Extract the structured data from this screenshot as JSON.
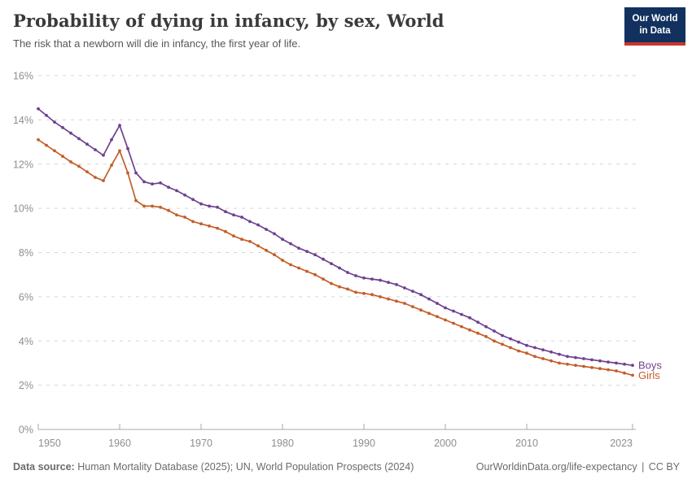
{
  "header": {
    "title": "Probability of dying in infancy, by sex, World",
    "subtitle": "The risk that a newborn will die in infancy, the first year of life.",
    "logo_line1": "Our World",
    "logo_line2": "in Data",
    "logo_bg": "#12315F",
    "logo_accent": "#C7372C"
  },
  "chart_data": {
    "type": "line",
    "title": "Probability of dying in infancy, by sex, World",
    "xlabel": "",
    "ylabel": "",
    "grid": "horizontal dashed",
    "legend_position": "end-of-line labels",
    "ylim": [
      0,
      16
    ],
    "yticks": [
      0,
      2,
      4,
      6,
      8,
      10,
      12,
      14,
      16
    ],
    "ytick_suffix": "%",
    "xticks": [
      1950,
      1960,
      1970,
      1980,
      1990,
      2000,
      2010,
      2023
    ],
    "colors": {
      "grid": "#d6d6d6",
      "axis": "#a9a9a9",
      "tick_text": "#8e8e8e"
    },
    "x": [
      1950,
      1951,
      1952,
      1953,
      1954,
      1955,
      1956,
      1957,
      1958,
      1959,
      1960,
      1961,
      1962,
      1963,
      1964,
      1965,
      1966,
      1967,
      1968,
      1969,
      1970,
      1971,
      1972,
      1973,
      1974,
      1975,
      1976,
      1977,
      1978,
      1979,
      1980,
      1981,
      1982,
      1983,
      1984,
      1985,
      1986,
      1987,
      1988,
      1989,
      1990,
      1991,
      1992,
      1993,
      1994,
      1995,
      1996,
      1997,
      1998,
      1999,
      2000,
      2001,
      2002,
      2003,
      2004,
      2005,
      2006,
      2007,
      2008,
      2009,
      2010,
      2011,
      2012,
      2013,
      2014,
      2015,
      2016,
      2017,
      2018,
      2019,
      2020,
      2021,
      2022,
      2023
    ],
    "series": [
      {
        "name": "Boys",
        "color": "#6D4291",
        "values": [
          14.5,
          14.2,
          13.9,
          13.65,
          13.4,
          13.15,
          12.9,
          12.65,
          12.4,
          13.1,
          13.75,
          12.7,
          11.6,
          11.2,
          11.1,
          11.15,
          10.95,
          10.8,
          10.6,
          10.4,
          10.2,
          10.1,
          10.05,
          9.85,
          9.7,
          9.6,
          9.4,
          9.25,
          9.05,
          8.85,
          8.6,
          8.4,
          8.2,
          8.05,
          7.9,
          7.7,
          7.5,
          7.3,
          7.1,
          6.95,
          6.85,
          6.8,
          6.75,
          6.65,
          6.55,
          6.4,
          6.25,
          6.1,
          5.9,
          5.7,
          5.5,
          5.35,
          5.2,
          5.05,
          4.85,
          4.65,
          4.45,
          4.25,
          4.1,
          3.95,
          3.8,
          3.7,
          3.6,
          3.5,
          3.4,
          3.3,
          3.25,
          3.2,
          3.15,
          3.1,
          3.05,
          3.0,
          2.95,
          2.9
        ]
      },
      {
        "name": "Girls",
        "color": "#C45E28",
        "values": [
          13.1,
          12.85,
          12.6,
          12.35,
          12.1,
          11.9,
          11.65,
          11.4,
          11.25,
          11.95,
          12.6,
          11.6,
          10.35,
          10.1,
          10.1,
          10.05,
          9.9,
          9.7,
          9.6,
          9.4,
          9.3,
          9.2,
          9.1,
          8.95,
          8.75,
          8.6,
          8.5,
          8.3,
          8.1,
          7.9,
          7.65,
          7.45,
          7.3,
          7.15,
          7.0,
          6.8,
          6.6,
          6.45,
          6.35,
          6.2,
          6.15,
          6.1,
          6.0,
          5.9,
          5.8,
          5.7,
          5.55,
          5.4,
          5.25,
          5.1,
          4.95,
          4.8,
          4.65,
          4.5,
          4.35,
          4.2,
          4.0,
          3.85,
          3.7,
          3.55,
          3.45,
          3.3,
          3.2,
          3.1,
          3.0,
          2.95,
          2.9,
          2.85,
          2.8,
          2.75,
          2.7,
          2.65,
          2.55,
          2.45
        ]
      }
    ]
  },
  "footer": {
    "source_label": "Data source:",
    "source_text": "Human Mortality Database (2025); UN, World Population Prospects (2024)",
    "url": "OurWorldinData.org/life-expectancy",
    "separator": "|",
    "license": "CC BY"
  }
}
